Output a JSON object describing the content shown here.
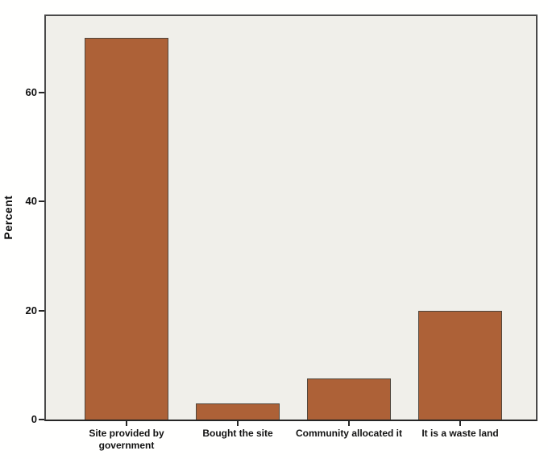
{
  "chart_data": {
    "type": "bar",
    "title": "",
    "xlabel": "",
    "ylabel": "Percent",
    "categories": [
      "Site provided by\ngovernment",
      "Bought the site",
      "Community allocated it",
      "It is a waste land"
    ],
    "values": [
      70,
      3,
      7.5,
      20
    ],
    "yticks": [
      0,
      20,
      40,
      60
    ],
    "ylim": [
      0,
      74
    ],
    "grid": false,
    "legend_position": "none",
    "colors": {
      "bar_fill": "#ad6137",
      "bar_border": "#4f463c",
      "plot_background": "#f0efea",
      "frame": "#4a4a4a",
      "axis_line": "#262626",
      "text": "#111111",
      "page_background": "#fffffe"
    }
  }
}
